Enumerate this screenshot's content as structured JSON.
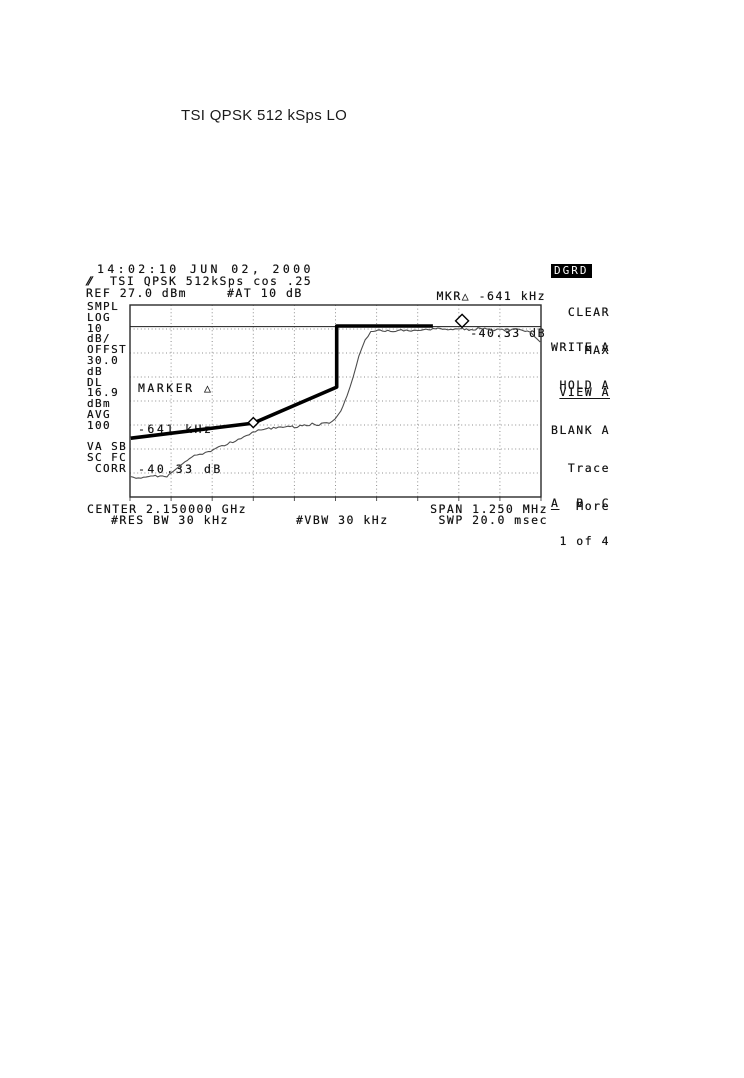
{
  "page": {
    "title": "TSI QPSK 512 kSps LO"
  },
  "analyzer": {
    "timestamp": "14:02:10 JUN 02, 2000",
    "logo_glyph": "⫽",
    "trace_title": "TSI QPSK 512kSps cos .25",
    "ref_label": "REF 27.0 dBm",
    "atten_label": "#AT 10 dB",
    "status_badge": "DGRD",
    "marker_readout": {
      "line1": "MKR△ -641 kHz",
      "line2": "-40.33 dB"
    },
    "graph_marker_text": {
      "line1": "MARKER △",
      "line2": "-641 kHz",
      "line3": "-40.33 dB"
    },
    "left_column": [
      "SMPL",
      "LOG",
      "10",
      "dB/",
      "OFFST",
      "30.0",
      "dB",
      "DL",
      "16.9",
      "dBm",
      "AVG",
      "100",
      "",
      "VA SB",
      "SC FC",
      " CORR"
    ],
    "softkeys": [
      {
        "lines": [
          "CLEAR",
          "WRITE A"
        ]
      },
      {
        "lines": [
          "MAX",
          "HOLD A"
        ]
      },
      {
        "lines": [
          "VIEW A"
        ]
      },
      {
        "lines": [
          "BLANK A"
        ]
      }
    ],
    "trace_selector": {
      "label": "Trace",
      "options": [
        "A",
        "B",
        "C"
      ],
      "selected": "A"
    },
    "more_key": {
      "line1": "More",
      "line2": "1 of 4"
    },
    "bottom": {
      "center": "CENTER 2.150000 GHz",
      "span": "SPAN 1.250 MHz",
      "res_bw": "#RES BW 30 kHz",
      "vbw": "#VBW 30 kHz",
      "swp": "SWP 20.0 msec"
    }
  },
  "chart_data": {
    "type": "line",
    "title": "TSI QPSK 512kSps cos .25",
    "x_axis": {
      "center": 2.15,
      "center_unit": "GHz",
      "span": 1.25,
      "span_unit": "MHz",
      "divisions": 10
    },
    "y_axis": {
      "ref_level_dBm": 27.0,
      "scale_dB_per_div": 10,
      "divisions": 8,
      "offset_dB": 30.0,
      "display_line_dBm": 16.9
    },
    "settings": {
      "res_bw_kHz": 30,
      "vbw_kHz": 30,
      "sweep_ms": 20.0,
      "atten_dB": 10,
      "avg_count": 100,
      "detector": "SMPL"
    },
    "marker_delta": {
      "freq_kHz": -641,
      "amplitude_dB": -40.33
    },
    "display_line_div": 0.9,
    "noise_amplitude_div": 0.05,
    "grid": {
      "style": "dotted",
      "border": true
    },
    "traces": [
      {
        "name": "trace-a-spectrum",
        "style": "thin-noisy",
        "points_div": [
          [
            0.02,
            7.2
          ],
          [
            0.45,
            7.16
          ],
          [
            0.9,
            7.12
          ],
          [
            1.0,
            7.0
          ],
          [
            1.12,
            6.83
          ],
          [
            1.34,
            6.54
          ],
          [
            1.5,
            6.33
          ],
          [
            1.7,
            6.22
          ],
          [
            1.9,
            6.13
          ],
          [
            2.09,
            6.0
          ],
          [
            2.3,
            5.85
          ],
          [
            2.5,
            5.7
          ],
          [
            2.7,
            5.55
          ],
          [
            2.9,
            5.38
          ],
          [
            3.05,
            5.25
          ],
          [
            3.26,
            5.19
          ],
          [
            3.55,
            5.1
          ],
          [
            3.84,
            5.04
          ],
          [
            4.0,
            5.08
          ],
          [
            4.14,
            5.02
          ],
          [
            4.3,
            5.05
          ],
          [
            4.43,
            4.96
          ],
          [
            4.6,
            4.99
          ],
          [
            4.72,
            4.88
          ],
          [
            4.85,
            4.92
          ],
          [
            4.99,
            4.75
          ],
          [
            5.13,
            4.42
          ],
          [
            5.28,
            3.79
          ],
          [
            5.43,
            3.0
          ],
          [
            5.57,
            2.12
          ],
          [
            5.72,
            1.46
          ],
          [
            5.86,
            1.15
          ],
          [
            6.08,
            1.06
          ],
          [
            6.4,
            1.1
          ],
          [
            6.6,
            1.04
          ],
          [
            6.9,
            1.08
          ],
          [
            7.2,
            1.02
          ],
          [
            7.54,
            1.0
          ],
          [
            7.8,
            1.05
          ],
          [
            8.03,
            0.98
          ],
          [
            8.3,
            1.03
          ],
          [
            8.52,
            0.98
          ],
          [
            8.8,
            1.05
          ],
          [
            9.0,
            1.0
          ],
          [
            9.2,
            1.06
          ],
          [
            9.4,
            1.02
          ],
          [
            9.61,
            1.08
          ],
          [
            9.73,
            1.17
          ],
          [
            9.83,
            1.29
          ],
          [
            9.9,
            1.42
          ],
          [
            9.98,
            1.54
          ]
        ]
      },
      {
        "name": "trace-b-view",
        "style": "thick",
        "points_div": [
          [
            0.02,
            5.55
          ],
          [
            3.0,
            4.92
          ],
          [
            5.03,
            3.42
          ],
          [
            5.03,
            0.875
          ],
          [
            7.37,
            0.875
          ]
        ]
      }
    ],
    "markers_div": [
      {
        "name": "delta-ref-marker",
        "x": 3.0,
        "y": 4.9,
        "size": 5
      },
      {
        "name": "delta-marker",
        "x": 8.08,
        "y": 0.66,
        "size": 6.5
      }
    ]
  }
}
